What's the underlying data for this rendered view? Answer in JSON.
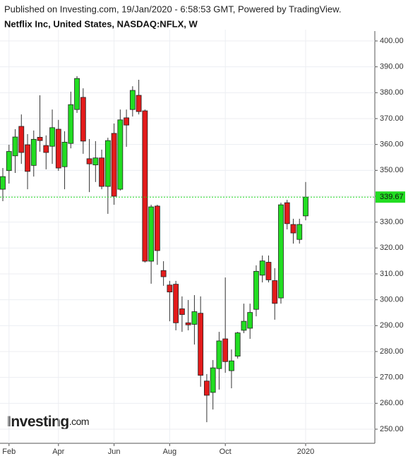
{
  "chart_data": {
    "type": "candlestick",
    "subtitle": "Published on Investing.com, 19/Jan/2020 - 6:58:53 GMT, Powered by TradingView.",
    "title": "Netflix Inc, United States, NASDAQ:NFLX, W",
    "watermark": "Investing",
    "watermark_suffix": ".com",
    "categories": [
      null,
      "Feb",
      null,
      null,
      null,
      null,
      null,
      null,
      null,
      "Apr",
      null,
      null,
      null,
      null,
      null,
      null,
      null,
      null,
      "Jun",
      null,
      null,
      null,
      null,
      null,
      null,
      null,
      null,
      "Aug",
      null,
      null,
      null,
      null,
      null,
      null,
      null,
      null,
      "Oct",
      null,
      null,
      null,
      null,
      null,
      null,
      null,
      null,
      null,
      null,
      null,
      null,
      "2020"
    ],
    "open": [
      342.7,
      349.9,
      355.6,
      367.0,
      359.9,
      351.9,
      362.8,
      359.6,
      359.3,
      365.9,
      351.4,
      360.4,
      373.5,
      378.2,
      354.5,
      352.1,
      354.8,
      343.8,
      364.3,
      342.7,
      370.3,
      373.5,
      379.0,
      373.0,
      314.9,
      336.2,
      311.3,
      305.7,
      306.0,
      296.5,
      291.1,
      290.5,
      294.8,
      268.6,
      264.2,
      273.4,
      284.9,
      272.6,
      278.2,
      288.2,
      289.0,
      296.3,
      309.5,
      314.5,
      307.4,
      300.7,
      337.5,
      329.1,
      323.3,
      332.4
    ],
    "high": [
      350.9,
      359.9,
      365.9,
      371.6,
      364.0,
      365.4,
      379.0,
      363.5,
      373.5,
      369.5,
      365.1,
      380.4,
      386.4,
      381.7,
      362.1,
      361.3,
      358.0,
      362.6,
      368.1,
      373.5,
      373.5,
      382.5,
      385.0,
      373.5,
      336.7,
      336.7,
      314.9,
      307.3,
      307.3,
      301.3,
      299.9,
      301.8,
      301.3,
      271.3,
      276.7,
      287.6,
      308.6,
      280.8,
      287.6,
      298.5,
      298.5,
      313.3,
      317.1,
      317.1,
      312.2,
      337.5,
      338.6,
      331.3,
      331.3,
      345.5
    ],
    "low": [
      338.1,
      344.9,
      349.0,
      352.5,
      342.7,
      347.6,
      357.2,
      350.4,
      352.5,
      349.8,
      342.7,
      358.5,
      372.2,
      356.4,
      341.6,
      345.5,
      342.7,
      333.2,
      336.7,
      342.2,
      359.1,
      370.8,
      371.6,
      314.4,
      306.2,
      313.5,
      305.4,
      291.7,
      288.2,
      287.6,
      288.2,
      282.7,
      266.4,
      252.7,
      257.6,
      265.3,
      271.8,
      265.8,
      277.3,
      287.1,
      284.9,
      293.6,
      306.7,
      306.7,
      292.3,
      298.5,
      327.2,
      321.7,
      321.7,
      330.7
    ],
    "close": [
      347.6,
      357.3,
      362.9,
      356.9,
      349.6,
      362.0,
      361.5,
      356.9,
      366.5,
      350.9,
      360.9,
      375.4,
      385.5,
      361.3,
      352.5,
      354.8,
      343.8,
      361.5,
      340.0,
      369.5,
      367.5,
      380.9,
      372.7,
      314.9,
      335.9,
      319.0,
      308.9,
      303.0,
      291.1,
      294.3,
      290.3,
      295.4,
      270.8,
      263.1,
      273.7,
      284.1,
      276.1,
      276.4,
      287.2,
      291.7,
      295.1,
      311.0,
      315.0,
      307.7,
      298.6,
      336.7,
      329.4,
      325.8,
      329.1,
      339.67
    ],
    "up_color": "#22dd22",
    "down_color": "#e31b1b",
    "ylim": [
      247,
      403
    ],
    "yticks": [
      {
        "value": 250,
        "label": "250.00"
      },
      {
        "value": 260,
        "label": "260.00"
      },
      {
        "value": 270,
        "label": "270.00"
      },
      {
        "value": 280,
        "label": "280.00"
      },
      {
        "value": 290,
        "label": "290.00"
      },
      {
        "value": 300,
        "label": "300.00"
      },
      {
        "value": 310,
        "label": "310.00"
      },
      {
        "value": 320,
        "label": "320.00"
      },
      {
        "value": 330,
        "label": "330.00"
      },
      {
        "value": 340,
        "label": "340.00"
      },
      {
        "value": 350,
        "label": "350.00"
      },
      {
        "value": 360,
        "label": "360.00"
      },
      {
        "value": 370,
        "label": "370.00"
      },
      {
        "value": 380,
        "label": "380.00"
      },
      {
        "value": 390,
        "label": "390.00"
      },
      {
        "value": 400,
        "label": "400.00"
      }
    ],
    "grid": true
  }
}
